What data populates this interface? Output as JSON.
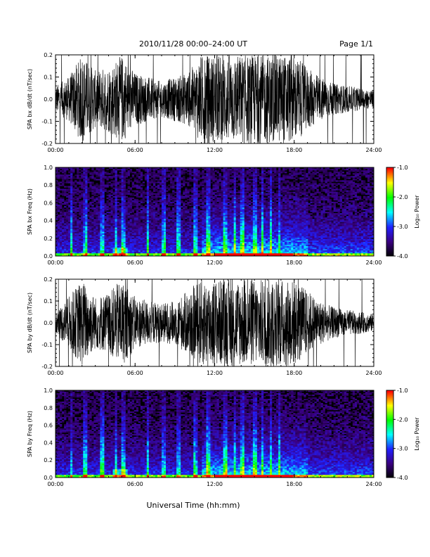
{
  "header": {
    "title": "2010/11/28  00:00–24:00 UT",
    "page": "Page 1/1"
  },
  "xlabel": "Universal Time (hh:mm)",
  "colors": {
    "trace": "#000000",
    "colormap": [
      "#000000",
      "#3a0080",
      "#2020ff",
      "#00ffff",
      "#00ff00",
      "#ffff00",
      "#ff0000"
    ]
  },
  "colorbar": {
    "label": "Log₁₀ Power",
    "ticks": [
      "-1.0",
      "-2.0",
      "-3.0",
      "-4.0"
    ],
    "range": [
      -4,
      -1
    ]
  },
  "chart_data": [
    {
      "type": "line",
      "ylabel": "SPA bx dB/dt (nT/sec)",
      "xlim": [
        0,
        24
      ],
      "ylim": [
        -0.2,
        0.2
      ],
      "xticks": [
        "00:00",
        "06:00",
        "12:00",
        "18:00",
        "24:00"
      ],
      "yticks": [
        "0.2",
        "0.1",
        "0.0",
        "-0.1",
        "-0.2"
      ],
      "amplitude_envelope": {
        "hours": [
          0,
          1,
          2,
          3,
          4,
          5,
          6,
          7,
          8,
          9,
          10,
          11,
          12,
          13,
          14,
          15,
          16,
          17,
          18,
          19,
          20,
          21,
          22,
          23,
          24
        ],
        "amplitude": [
          0.06,
          0.1,
          0.2,
          0.13,
          0.15,
          0.2,
          0.12,
          0.1,
          0.08,
          0.1,
          0.12,
          0.2,
          0.2,
          0.2,
          0.2,
          0.2,
          0.2,
          0.2,
          0.2,
          0.14,
          0.1,
          0.07,
          0.06,
          0.05,
          0.04
        ]
      }
    },
    {
      "type": "heatmap",
      "ylabel": "SPA bx Freq (Hz)",
      "xlim": [
        0,
        24
      ],
      "ylim": [
        0,
        1.0
      ],
      "xticks": [
        "00:00",
        "06:00",
        "12:00",
        "18:00",
        "24:00"
      ],
      "yticks": [
        "1.0",
        "0.8",
        "0.6",
        "0.4",
        "0.2",
        "0.0"
      ],
      "zlabel": "Log₁₀ Power",
      "zlim": [
        -4,
        -1
      ]
    },
    {
      "type": "line",
      "ylabel": "SPA by dB/dt (nT/sec)",
      "xlim": [
        0,
        24
      ],
      "ylim": [
        -0.2,
        0.2
      ],
      "xticks": [
        "00:00",
        "06:00",
        "12:00",
        "18:00",
        "24:00"
      ],
      "yticks": [
        "0.2",
        "0.1",
        "0.0",
        "-0.1",
        "-0.2"
      ],
      "amplitude_envelope": {
        "hours": [
          0,
          1,
          2,
          3,
          4,
          5,
          6,
          7,
          8,
          9,
          10,
          11,
          12,
          13,
          14,
          15,
          16,
          17,
          18,
          19,
          20,
          21,
          22,
          23,
          24
        ],
        "amplitude": [
          0.05,
          0.12,
          0.2,
          0.12,
          0.14,
          0.2,
          0.12,
          0.1,
          0.09,
          0.1,
          0.15,
          0.2,
          0.2,
          0.2,
          0.2,
          0.2,
          0.2,
          0.2,
          0.2,
          0.15,
          0.1,
          0.07,
          0.06,
          0.05,
          0.04
        ]
      }
    },
    {
      "type": "heatmap",
      "ylabel": "SPA by Freq (Hz)",
      "xlim": [
        0,
        24
      ],
      "ylim": [
        0,
        1.0
      ],
      "xticks": [
        "00:00",
        "06:00",
        "12:00",
        "18:00",
        "24:00"
      ],
      "yticks": [
        "1.0",
        "0.8",
        "0.6",
        "0.4",
        "0.2",
        "0.0"
      ],
      "zlabel": "Log₁₀ Power",
      "zlim": [
        -4,
        -1
      ]
    }
  ]
}
